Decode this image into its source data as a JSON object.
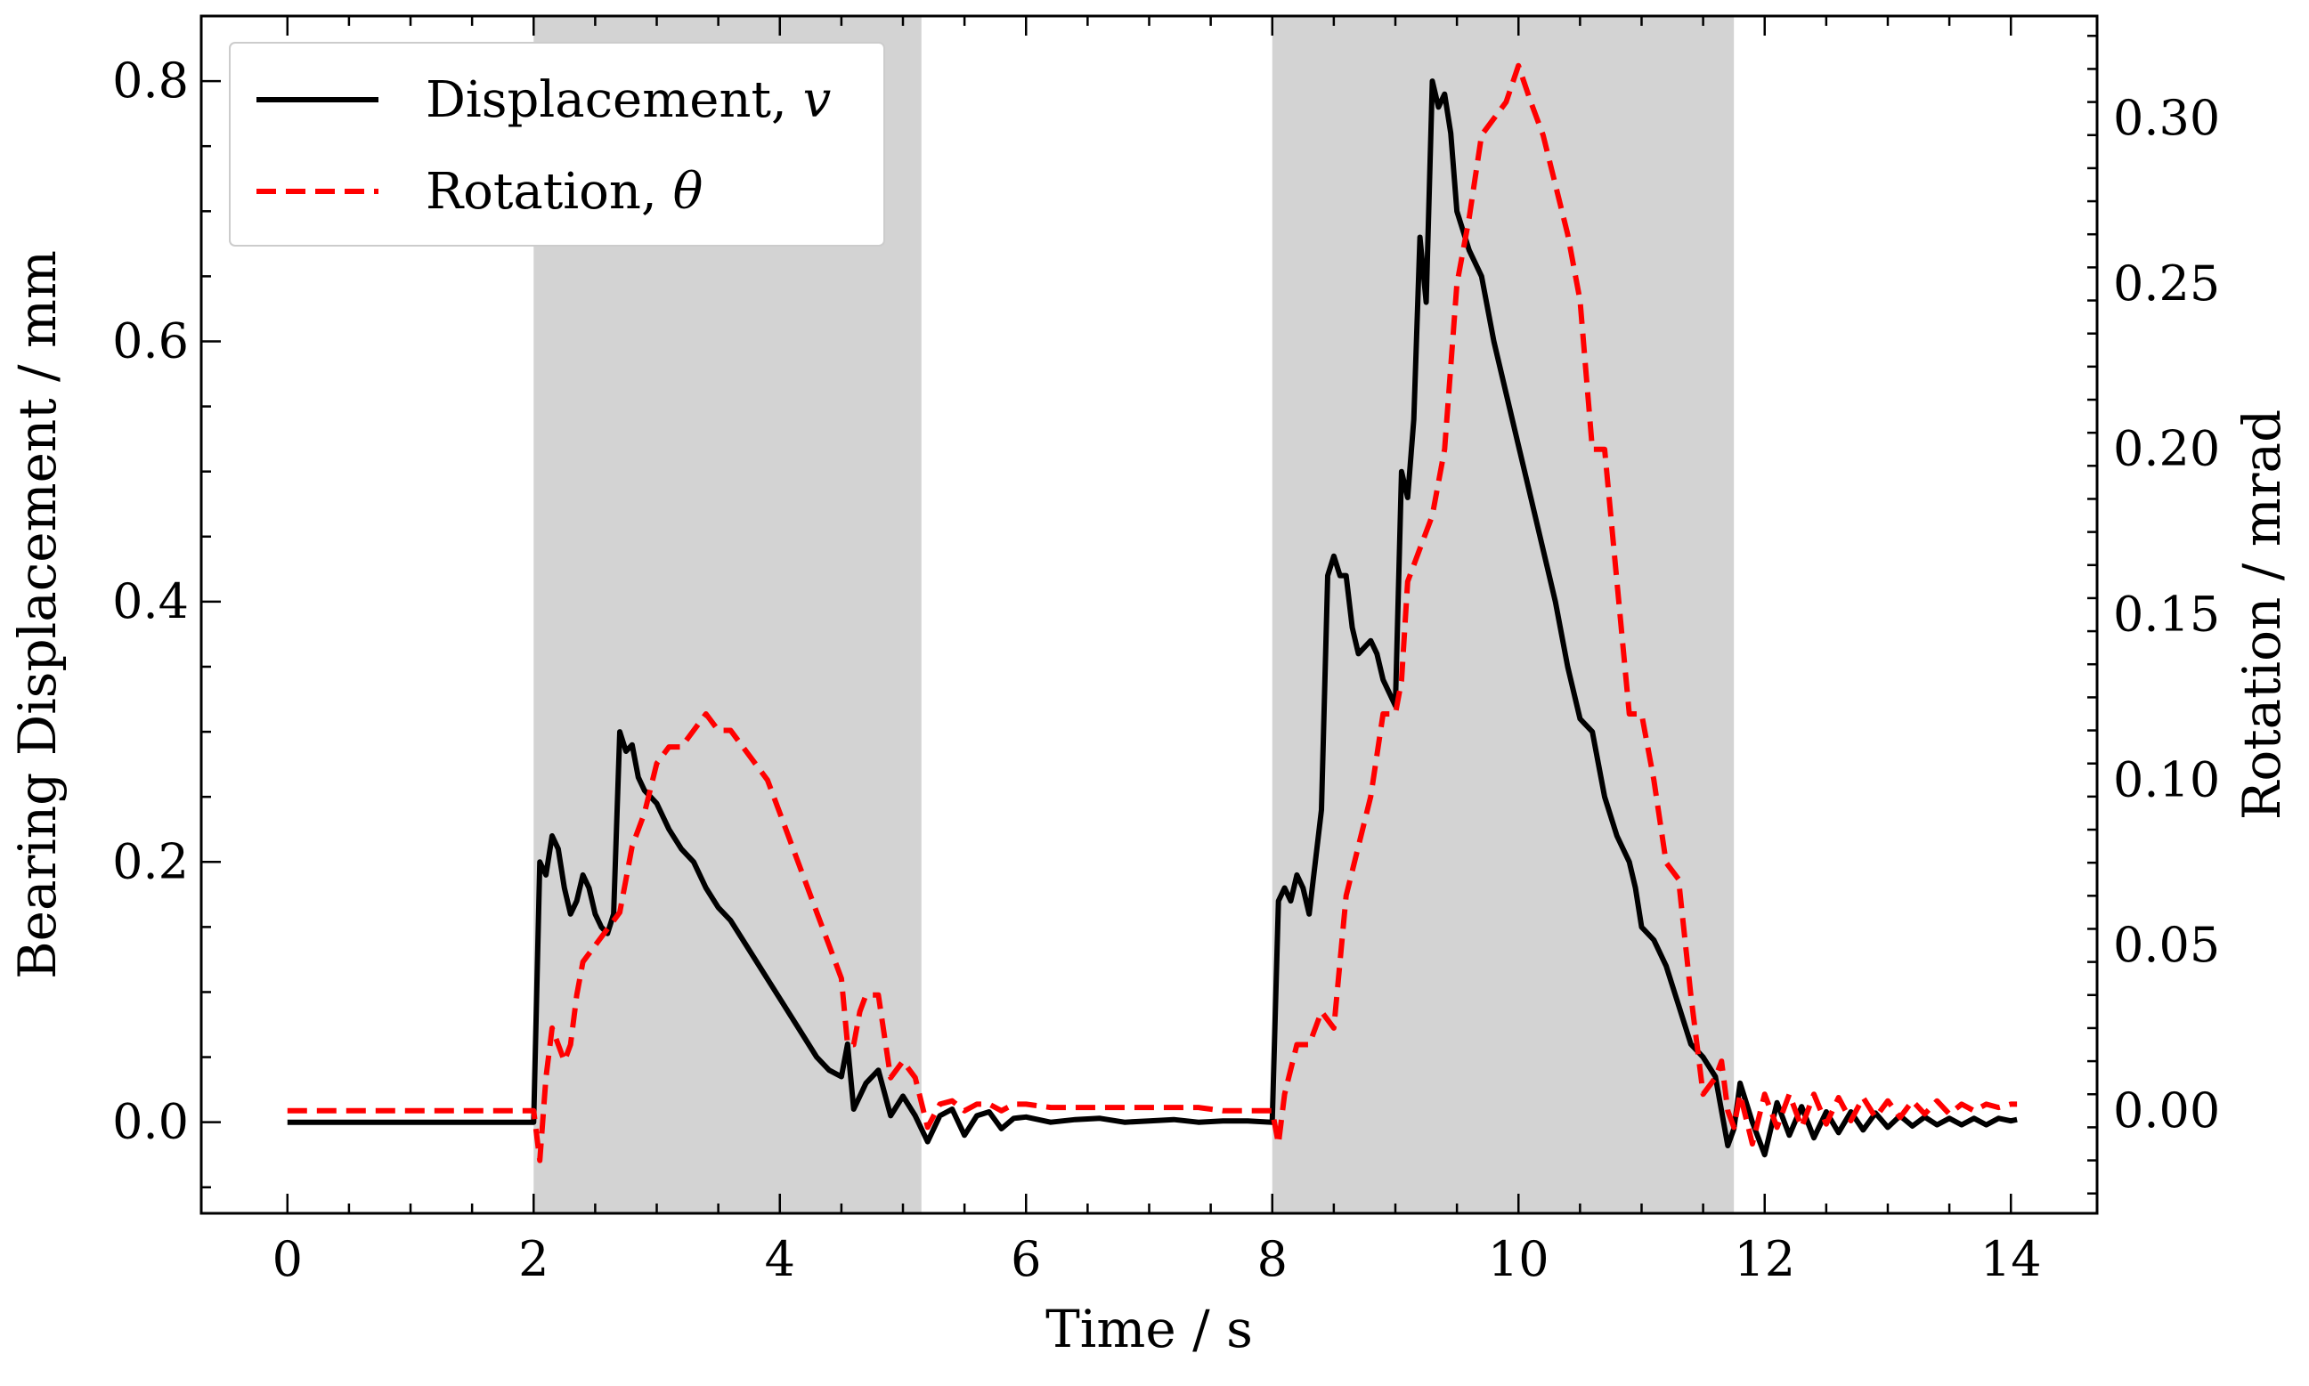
{
  "chart_data": {
    "type": "line",
    "xlabel": "Time / s",
    "ylabel": "Bearing Displacement / mm",
    "y2label": "Rotation / mrad",
    "xlim": [
      -0.7,
      14.7
    ],
    "ylim": [
      -0.07,
      0.85
    ],
    "y2lim": [
      -0.031,
      0.331
    ],
    "xticks": [
      0,
      2,
      4,
      6,
      8,
      10,
      12,
      14
    ],
    "yticks": [
      0.0,
      0.2,
      0.4,
      0.6,
      0.8
    ],
    "y2ticks": [
      0.0,
      0.05,
      0.1,
      0.15,
      0.2,
      0.25,
      0.3
    ],
    "shaded_regions": [
      [
        2.0,
        5.15
      ],
      [
        8.0,
        11.75
      ]
    ],
    "shade_color": "#d3d3d3",
    "legend_position": "top-left",
    "series": [
      {
        "name": "Displacement, ",
        "symbol": "v",
        "axis": "left",
        "color": "#000000",
        "style": "solid",
        "x": [
          0,
          2.0,
          2.05,
          2.1,
          2.15,
          2.2,
          2.25,
          2.3,
          2.35,
          2.4,
          2.45,
          2.5,
          2.55,
          2.6,
          2.65,
          2.7,
          2.75,
          2.8,
          2.85,
          2.9,
          2.95,
          3.0,
          3.1,
          3.2,
          3.3,
          3.4,
          3.5,
          3.6,
          3.7,
          3.8,
          3.9,
          4.0,
          4.1,
          4.2,
          4.3,
          4.4,
          4.5,
          4.55,
          4.6,
          4.65,
          4.7,
          4.8,
          4.9,
          5.0,
          5.1,
          5.2,
          5.3,
          5.4,
          5.5,
          5.6,
          5.7,
          5.8,
          5.9,
          6.0,
          6.2,
          6.4,
          6.6,
          6.8,
          7.0,
          7.2,
          7.4,
          7.6,
          7.8,
          8.0,
          8.05,
          8.1,
          8.15,
          8.2,
          8.25,
          8.3,
          8.35,
          8.4,
          8.45,
          8.5,
          8.55,
          8.6,
          8.65,
          8.7,
          8.75,
          8.8,
          8.85,
          8.9,
          8.95,
          9.0,
          9.05,
          9.1,
          9.15,
          9.2,
          9.25,
          9.3,
          9.35,
          9.4,
          9.45,
          9.5,
          9.6,
          9.7,
          9.8,
          9.9,
          10.0,
          10.1,
          10.2,
          10.3,
          10.4,
          10.5,
          10.6,
          10.7,
          10.8,
          10.9,
          10.95,
          11.0,
          11.1,
          11.2,
          11.3,
          11.4,
          11.5,
          11.6,
          11.7,
          11.75,
          11.8,
          11.85,
          11.9,
          12.0,
          12.1,
          12.2,
          12.3,
          12.4,
          12.5,
          12.6,
          12.7,
          12.8,
          12.9,
          13.0,
          13.1,
          13.2,
          13.3,
          13.4,
          13.5,
          13.6,
          13.7,
          13.8,
          13.9,
          14.0,
          14.05
        ],
        "y": [
          0.0,
          0.0,
          0.2,
          0.19,
          0.22,
          0.21,
          0.18,
          0.16,
          0.17,
          0.19,
          0.18,
          0.16,
          0.15,
          0.145,
          0.16,
          0.3,
          0.285,
          0.29,
          0.265,
          0.255,
          0.25,
          0.245,
          0.225,
          0.21,
          0.2,
          0.18,
          0.165,
          0.155,
          0.14,
          0.125,
          0.11,
          0.095,
          0.08,
          0.065,
          0.05,
          0.04,
          0.035,
          0.06,
          0.01,
          0.02,
          0.03,
          0.04,
          0.005,
          0.02,
          0.005,
          -0.015,
          0.005,
          0.01,
          -0.01,
          0.005,
          0.008,
          -0.005,
          0.003,
          0.004,
          0.0,
          0.002,
          0.003,
          0.0,
          0.001,
          0.002,
          0.0,
          0.001,
          0.001,
          0.0,
          0.17,
          0.18,
          0.17,
          0.19,
          0.18,
          0.16,
          0.2,
          0.24,
          0.42,
          0.435,
          0.42,
          0.42,
          0.38,
          0.36,
          0.365,
          0.37,
          0.36,
          0.34,
          0.33,
          0.32,
          0.5,
          0.48,
          0.54,
          0.68,
          0.63,
          0.8,
          0.78,
          0.79,
          0.76,
          0.7,
          0.67,
          0.65,
          0.6,
          0.56,
          0.52,
          0.48,
          0.44,
          0.4,
          0.35,
          0.31,
          0.3,
          0.25,
          0.22,
          0.2,
          0.18,
          0.15,
          0.14,
          0.12,
          0.09,
          0.06,
          0.05,
          0.035,
          -0.018,
          -0.005,
          0.03,
          0.015,
          0.0,
          -0.025,
          0.015,
          -0.01,
          0.012,
          -0.012,
          0.008,
          -0.008,
          0.008,
          -0.006,
          0.007,
          -0.004,
          0.005,
          -0.003,
          0.004,
          -0.002,
          0.003,
          -0.002,
          0.003,
          -0.002,
          0.003,
          0.001,
          0.002
        ]
      },
      {
        "name": "Rotation, ",
        "symbol": "θ",
        "axis": "right",
        "color": "#ff0000",
        "style": "dashed",
        "x": [
          0,
          2.0,
          2.05,
          2.1,
          2.15,
          2.2,
          2.25,
          2.3,
          2.35,
          2.4,
          2.5,
          2.6,
          2.7,
          2.75,
          2.8,
          2.9,
          3.0,
          3.1,
          3.2,
          3.3,
          3.4,
          3.5,
          3.6,
          3.7,
          3.8,
          3.9,
          4.0,
          4.1,
          4.2,
          4.3,
          4.4,
          4.5,
          4.55,
          4.6,
          4.65,
          4.7,
          4.8,
          4.9,
          5.0,
          5.1,
          5.2,
          5.3,
          5.4,
          5.5,
          5.6,
          5.7,
          5.8,
          5.9,
          6.0,
          6.2,
          6.4,
          6.6,
          6.8,
          7.0,
          7.2,
          7.4,
          7.6,
          7.8,
          8.0,
          8.05,
          8.1,
          8.2,
          8.3,
          8.4,
          8.5,
          8.6,
          8.7,
          8.8,
          8.9,
          9.0,
          9.05,
          9.1,
          9.2,
          9.3,
          9.4,
          9.5,
          9.6,
          9.7,
          9.8,
          9.9,
          10.0,
          10.1,
          10.2,
          10.3,
          10.4,
          10.5,
          10.6,
          10.7,
          10.8,
          10.9,
          11.0,
          11.1,
          11.2,
          11.3,
          11.4,
          11.5,
          11.6,
          11.65,
          11.7,
          11.75,
          11.8,
          11.9,
          12.0,
          12.1,
          12.2,
          12.3,
          12.4,
          12.5,
          12.6,
          12.7,
          12.8,
          12.9,
          13.0,
          13.1,
          13.2,
          13.3,
          13.4,
          13.5,
          13.6,
          13.7,
          13.8,
          13.9,
          14.0,
          14.05
        ],
        "y": [
          0.0,
          0.0,
          -0.015,
          0.01,
          0.025,
          0.02,
          0.015,
          0.02,
          0.035,
          0.045,
          0.05,
          0.055,
          0.06,
          0.07,
          0.08,
          0.09,
          0.105,
          0.11,
          0.11,
          0.115,
          0.12,
          0.115,
          0.115,
          0.11,
          0.105,
          0.1,
          0.09,
          0.08,
          0.07,
          0.06,
          0.05,
          0.04,
          0.02,
          0.02,
          0.03,
          0.035,
          0.035,
          0.01,
          0.015,
          0.01,
          -0.005,
          0.002,
          0.003,
          0.0,
          0.002,
          0.002,
          0.0,
          0.002,
          0.002,
          0.001,
          0.001,
          0.001,
          0.001,
          0.001,
          0.001,
          0.001,
          0.0,
          0.0,
          0.0,
          -0.01,
          0.005,
          0.02,
          0.02,
          0.03,
          0.025,
          0.065,
          0.08,
          0.095,
          0.12,
          0.12,
          0.13,
          0.16,
          0.17,
          0.18,
          0.2,
          0.25,
          0.27,
          0.295,
          0.3,
          0.305,
          0.316,
          0.305,
          0.295,
          0.28,
          0.265,
          0.245,
          0.2,
          0.2,
          0.16,
          0.12,
          0.12,
          0.1,
          0.075,
          0.07,
          0.035,
          0.005,
          0.01,
          0.015,
          0.0,
          -0.005,
          0.005,
          -0.01,
          0.005,
          -0.005,
          0.005,
          -0.005,
          0.005,
          -0.004,
          0.004,
          -0.003,
          0.004,
          -0.002,
          0.003,
          -0.002,
          0.003,
          -0.001,
          0.003,
          -0.001,
          0.002,
          0.0,
          0.002,
          0.001,
          0.002,
          0.002
        ]
      }
    ]
  }
}
